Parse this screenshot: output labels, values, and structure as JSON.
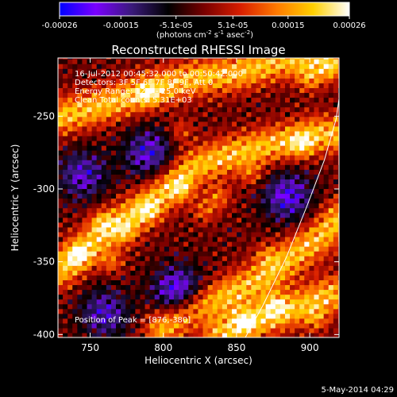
{
  "colorbar": {
    "min": -0.00026,
    "max": 0.00026,
    "ticks": [
      {
        "value": -0.00026,
        "label": "-0.00026"
      },
      {
        "value": -0.00015,
        "label": "-0.00015"
      },
      {
        "value": -5.1e-05,
        "label": "-5.1e-05"
      },
      {
        "value": 5.1e-05,
        "label": "5.1e-05"
      },
      {
        "value": 0.00015,
        "label": "0.00015"
      },
      {
        "value": 0.00026,
        "label": "0.00026"
      }
    ],
    "unit_parts": [
      "(photons cm",
      "-2",
      " s",
      "-1",
      " asec",
      "-2",
      ")"
    ],
    "colormap": [
      "#0000ff",
      "#7a00ff",
      "#3a1a7a",
      "#000000",
      "#7a0000",
      "#d81e00",
      "#ff7a00",
      "#ffd000",
      "#ffffff"
    ]
  },
  "chart_data": {
    "type": "heatmap",
    "title": "Reconstructed RHESSI Image",
    "xlabel": "Heliocentric X (arcsec)",
    "ylabel": "Heliocentric Y (arcsec)",
    "xlim": [
      728,
      920
    ],
    "ylim": [
      -402,
      -210
    ],
    "xticks": [
      750,
      800,
      850,
      900
    ],
    "yticks": [
      -400,
      -350,
      -300,
      -250
    ],
    "annotations": [
      "16-Jul-2012 00:45:32.000 to 00:50:42.000",
      "Detectors: 3F 5F 6F 7F 8F 9F, Att 0",
      "Energy Range: 12.0 - 25.0 keV",
      "Clean     Total counts: 5.31E+03"
    ],
    "peak_label": "Position of Peak = [876,-380]",
    "peak": [
      876,
      -380
    ],
    "limb_curve": [
      [
        856,
        -402
      ],
      [
        868,
        -380
      ],
      [
        884,
        -347
      ],
      [
        898,
        -312
      ],
      [
        910,
        -280
      ],
      [
        918,
        -252
      ],
      [
        920,
        -238
      ]
    ],
    "emission_ridges": [
      {
        "x": [
          730,
          760,
          790,
          820,
          850,
          880,
          905,
          920
        ],
        "y": [
          -355,
          -330,
          -310,
          -285,
          -275,
          -268,
          -262,
          -262
        ]
      },
      {
        "x": [
          730,
          760,
          790,
          820,
          850,
          880,
          910
        ],
        "y": [
          -250,
          -242,
          -232,
          -224,
          -220,
          -212,
          -210
        ]
      },
      {
        "x": [
          800,
          820,
          845,
          870,
          890,
          910,
          920
        ],
        "y": [
          -395,
          -382,
          -372,
          -360,
          -345,
          -330,
          -320
        ]
      },
      {
        "x": [
          840,
          860,
          880,
          900,
          915
        ],
        "y": [
          -400,
          -392,
          -385,
          -378,
          -372
        ]
      }
    ],
    "hotspots": [
      {
        "x": 742,
        "y": -345,
        "v": 1.0
      },
      {
        "x": 765,
        "y": -350,
        "v": 0.9
      },
      {
        "x": 758,
        "y": -322,
        "v": 0.85
      },
      {
        "x": 790,
        "y": -315,
        "v": 0.9
      },
      {
        "x": 812,
        "y": -300,
        "v": 0.95
      },
      {
        "x": 838,
        "y": -305,
        "v": 1.0
      },
      {
        "x": 860,
        "y": -290,
        "v": 0.8
      },
      {
        "x": 895,
        "y": -270,
        "v": 0.9
      },
      {
        "x": 900,
        "y": -225,
        "v": 1.0
      },
      {
        "x": 915,
        "y": -218,
        "v": 0.85
      },
      {
        "x": 790,
        "y": -235,
        "v": 0.85
      },
      {
        "x": 812,
        "y": -260,
        "v": 0.8
      },
      {
        "x": 876,
        "y": -380,
        "v": 1.0
      },
      {
        "x": 855,
        "y": -390,
        "v": 0.9
      },
      {
        "x": 905,
        "y": -390,
        "v": 0.8
      },
      {
        "x": 870,
        "y": -345,
        "v": 0.7
      },
      {
        "x": 828,
        "y": -315,
        "v": 0.9
      },
      {
        "x": 775,
        "y": -330,
        "v": 0.8
      }
    ],
    "void_regions": [
      {
        "x": 810,
        "y": -370,
        "v": -0.8
      },
      {
        "x": 760,
        "y": -385,
        "v": -0.6
      },
      {
        "x": 885,
        "y": -305,
        "v": -0.7
      },
      {
        "x": 790,
        "y": -275,
        "v": -0.65
      },
      {
        "x": 745,
        "y": -290,
        "v": -0.6
      }
    ]
  },
  "footer": {
    "timestamp": "5-May-2014 04:29"
  }
}
